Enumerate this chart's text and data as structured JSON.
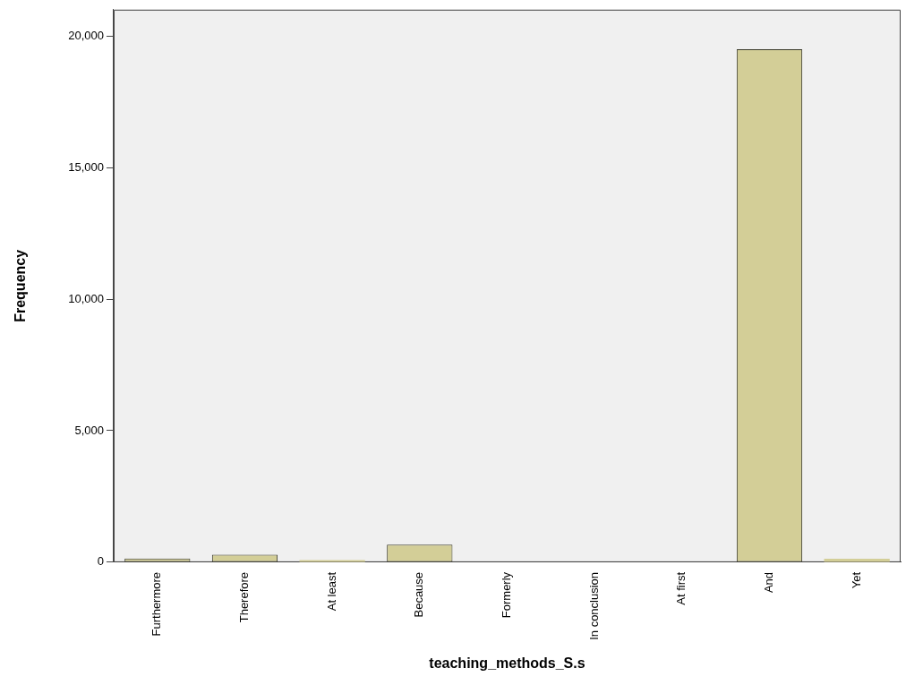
{
  "chart_data": {
    "type": "bar",
    "xlabel": "teaching_methods_S.s",
    "ylabel": "Frequency",
    "categories": [
      "Furthermore",
      "Therefore",
      "At least",
      "Because",
      "Formerly",
      "In conclusion",
      "At first",
      "And",
      "Yet"
    ],
    "values": [
      140,
      290,
      80,
      670,
      null,
      null,
      null,
      19500,
      130
    ],
    "color": "#d3ce97",
    "ylim": [
      0,
      21000
    ],
    "yticks": [
      {
        "value": 0,
        "label": "0"
      },
      {
        "value": 5000,
        "label": "5,000"
      },
      {
        "value": 10000,
        "label": "10,000"
      },
      {
        "value": 15000,
        "label": "15,000"
      },
      {
        "value": 20000,
        "label": "20,000"
      }
    ],
    "grid": false,
    "legend": false
  }
}
